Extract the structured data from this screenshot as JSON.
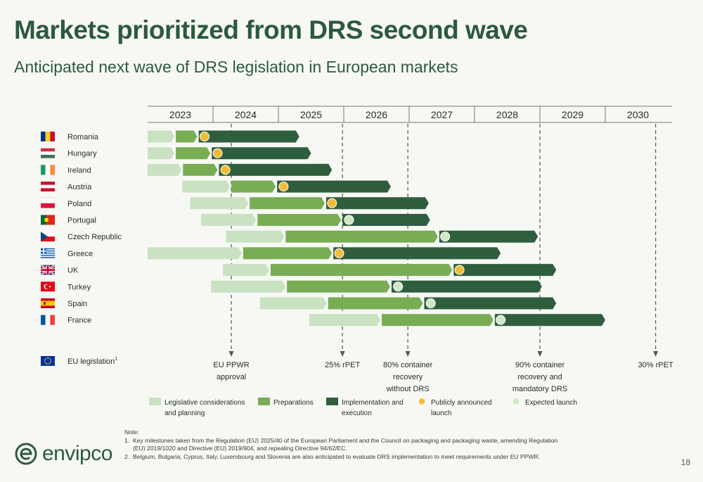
{
  "slide": {
    "title": "Markets prioritized from DRS second wave",
    "subtitle": "Anticipated next wave of DRS legislation in European markets",
    "page_number": "18",
    "logo_text": "envipco"
  },
  "notes": {
    "heading": "Note:",
    "lines": [
      "1.  Key milestones taken from the Regulation (EU) 2025/40 of the European Parliament and the Council on packaging and packaging waste, amending Regulation",
      "     (EU) 2019/1020 and Directive (EU) 2019/904, and repealing Directive 94/62/EC.",
      "2.  Belgium, Bulgaria, Cyprus, Italy, Luxembourg and Slovenia are also anticipated to evaluate DRS implementation to meet requirements under EU PPWR."
    ]
  },
  "colors": {
    "planning": "#c9e2c2",
    "preparations": "#78ad54",
    "implementation": "#2f5e3e",
    "announced": "#f2bd35",
    "expected": "#cfe7c7",
    "milestone": "#555555"
  },
  "chart_data": {
    "type": "gantt",
    "years": [
      "2023",
      "2024",
      "2025",
      "2026",
      "2027",
      "2028",
      "2029",
      "2030"
    ],
    "x_range": [
      2023.0,
      2031.0
    ],
    "markets": [
      {
        "name": "Romania",
        "flag": "romania-flag",
        "planning": [
          2023.0,
          2023.42
        ],
        "preparations": [
          2023.42,
          2023.77
        ],
        "implementation": [
          2023.77,
          2025.32
        ],
        "launch": {
          "type": "announced",
          "at": 2023.87
        }
      },
      {
        "name": "Hungary",
        "flag": "hungary-flag",
        "planning": [
          2023.0,
          2023.42
        ],
        "preparations": [
          2023.42,
          2023.97
        ],
        "implementation": [
          2023.97,
          2025.5
        ],
        "launch": {
          "type": "announced",
          "at": 2024.07
        }
      },
      {
        "name": "Ireland",
        "flag": "ireland-flag",
        "planning": [
          2023.0,
          2023.53
        ],
        "preparations": [
          2023.53,
          2024.08
        ],
        "implementation": [
          2024.08,
          2025.82
        ],
        "launch": {
          "type": "announced",
          "at": 2024.19
        }
      },
      {
        "name": "Austria",
        "flag": "austria-flag",
        "planning": [
          2023.53,
          2024.27
        ],
        "preparations": [
          2024.27,
          2024.97
        ],
        "implementation": [
          2024.97,
          2026.72
        ],
        "launch": {
          "type": "announced",
          "at": 2025.08
        }
      },
      {
        "name": "Poland",
        "flag": "poland-flag",
        "planning": [
          2023.65,
          2024.55
        ],
        "preparations": [
          2024.55,
          2025.72
        ],
        "implementation": [
          2025.72,
          2027.3
        ],
        "launch": {
          "type": "announced",
          "at": 2025.82
        }
      },
      {
        "name": "Portugal",
        "flag": "portugal-flag",
        "planning": [
          2023.82,
          2024.67
        ],
        "preparations": [
          2024.67,
          2025.97
        ],
        "implementation": [
          2025.97,
          2027.32
        ],
        "launch": {
          "type": "expected",
          "at": 2026.08
        }
      },
      {
        "name": "Czech Republic",
        "flag": "czech-republic-flag",
        "planning": [
          2024.2,
          2025.1
        ],
        "preparations": [
          2025.1,
          2027.45
        ],
        "implementation": [
          2027.45,
          2028.97
        ],
        "launch": {
          "type": "expected",
          "at": 2027.55
        }
      },
      {
        "name": "Greece",
        "flag": "greece-flag",
        "planning": [
          2023.0,
          2024.45
        ],
        "preparations": [
          2024.45,
          2025.83
        ],
        "implementation": [
          2025.83,
          2028.4
        ],
        "launch": {
          "type": "announced",
          "at": 2025.93
        }
      },
      {
        "name": "UK",
        "flag": "uk-flag",
        "planning": [
          2024.15,
          2024.87
        ],
        "preparations": [
          2024.87,
          2027.67
        ],
        "implementation": [
          2027.67,
          2029.25
        ],
        "launch": {
          "type": "announced",
          "at": 2027.77
        }
      },
      {
        "name": "Turkey",
        "flag": "turkey-flag",
        "planning": [
          2023.97,
          2025.12
        ],
        "preparations": [
          2025.12,
          2026.72
        ],
        "implementation": [
          2026.72,
          2029.03
        ],
        "launch": {
          "type": "expected",
          "at": 2026.83
        }
      },
      {
        "name": "Spain",
        "flag": "spain-flag",
        "planning": [
          2024.72,
          2025.75
        ],
        "preparations": [
          2025.75,
          2027.22
        ],
        "implementation": [
          2027.22,
          2029.25
        ],
        "launch": {
          "type": "expected",
          "at": 2027.33
        }
      },
      {
        "name": "France",
        "flag": "france-flag",
        "planning": [
          2025.47,
          2026.57
        ],
        "preparations": [
          2026.57,
          2028.3
        ],
        "implementation": [
          2028.3,
          2030.0
        ],
        "launch": {
          "type": "expected",
          "at": 2028.4
        }
      }
    ],
    "eu_row": {
      "label": "EU legislation",
      "superscript": "1",
      "flag": "eu-flag"
    },
    "milestones": [
      {
        "at": 2024.28,
        "lines": [
          "EU PPWR",
          "approval"
        ]
      },
      {
        "at": 2025.98,
        "lines": [
          "25% rPET"
        ]
      },
      {
        "at": 2026.98,
        "lines": [
          "80% container",
          "recovery",
          "without DRS"
        ]
      },
      {
        "at": 2029.0,
        "lines": [
          "90% container",
          "recovery and",
          "mandatory DRS"
        ]
      },
      {
        "at": 2030.77,
        "lines": [
          "30% rPET"
        ]
      }
    ],
    "legend": [
      {
        "key": "planning",
        "shape": "bar",
        "lines": [
          "Legislative considerations",
          "and planning"
        ]
      },
      {
        "key": "preparations",
        "shape": "bar",
        "lines": [
          "Preparations"
        ]
      },
      {
        "key": "implementation",
        "shape": "bar",
        "lines": [
          "Implementation and",
          "execution"
        ]
      },
      {
        "key": "announced",
        "shape": "dot",
        "lines": [
          "Publicly announced",
          "launch"
        ]
      },
      {
        "key": "expected",
        "shape": "dot",
        "lines": [
          "Expected launch"
        ]
      }
    ]
  }
}
